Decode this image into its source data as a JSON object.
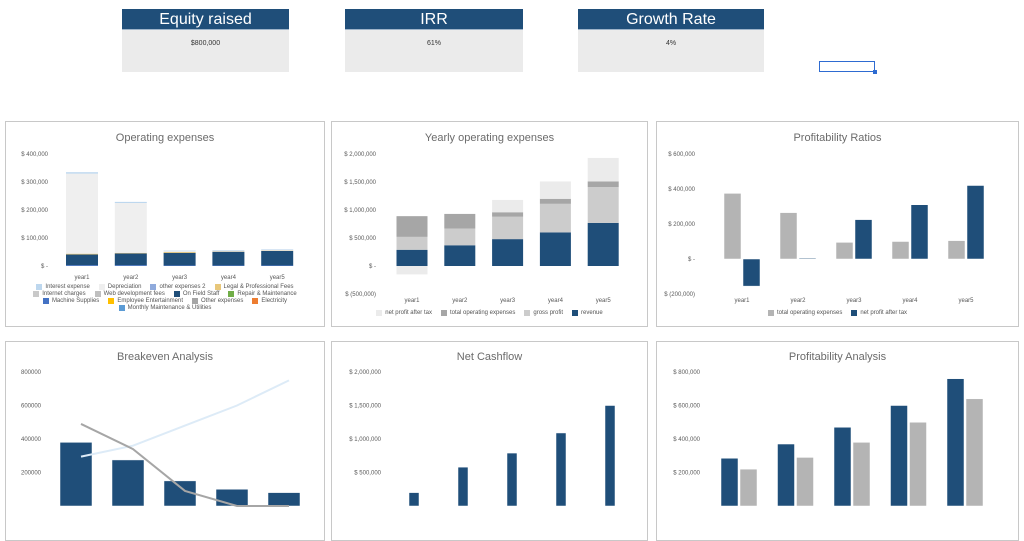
{
  "kpis": [
    {
      "title": "Equity raised",
      "value": "$800,000"
    },
    {
      "title": "IRR",
      "value": "61%"
    },
    {
      "title": "Growth Rate",
      "value": "4%"
    }
  ],
  "colors": {
    "navy": "#1f4e79",
    "kpi_bg": "#ebebeb",
    "grey": "#b4b4b4"
  },
  "chart_data": [
    {
      "id": "opex",
      "type": "bar",
      "stacked": true,
      "title": "Operating expenses",
      "categories": [
        "year1",
        "year2",
        "year3",
        "year4",
        "year5"
      ],
      "ylim": [
        0,
        400000
      ],
      "yticks": [
        {
          "value": 400000,
          "label": "$ 400,000"
        },
        {
          "value": 300000,
          "label": "$ 300,000"
        },
        {
          "value": 200000,
          "label": "$ 200,000"
        },
        {
          "value": 100000,
          "label": "$ 100,000"
        },
        {
          "value": 0,
          "label": "$ -"
        }
      ],
      "legend": "bottom",
      "series": [
        {
          "name": "Interest expense",
          "color": "#bdd7ee",
          "values": [
            5000,
            4000,
            2000,
            2000,
            2000
          ]
        },
        {
          "name": "Depreciation",
          "color": "#efefef",
          "values": [
            286000,
            178000,
            3000,
            3000,
            3000
          ]
        },
        {
          "name": "other expenses 2",
          "color": "#8faadc",
          "values": [
            0,
            0,
            0,
            0,
            0
          ]
        },
        {
          "name": "Legal & Professional Fees",
          "color": "#e8c77a",
          "values": [
            3000,
            2000,
            3000,
            1000,
            1000
          ]
        },
        {
          "name": "Internet charges",
          "color": "#c9c9c9",
          "values": [
            0,
            0,
            0,
            0,
            0
          ]
        },
        {
          "name": "Web development fees",
          "color": "#bfbfbf",
          "values": [
            0,
            0,
            0,
            0,
            0
          ]
        },
        {
          "name": "On Field Staff",
          "color": "#1f4e79",
          "values": [
            38000,
            42000,
            45000,
            49000,
            52000
          ]
        },
        {
          "name": "Repair & Maintenance",
          "color": "#70ad47",
          "values": [
            0,
            0,
            0,
            0,
            0
          ]
        },
        {
          "name": "Machine Supplies",
          "color": "#4472c4",
          "values": [
            3000,
            3000,
            2000,
            2000,
            2000
          ]
        },
        {
          "name": "Employee Entertainment",
          "color": "#ffc000",
          "values": [
            0,
            0,
            0,
            0,
            0
          ]
        },
        {
          "name": "Other expenses",
          "color": "#a5a5a5",
          "values": [
            0,
            0,
            0,
            0,
            0
          ]
        },
        {
          "name": "Electricity",
          "color": "#ed7d31",
          "values": [
            0,
            0,
            0,
            0,
            0
          ]
        },
        {
          "name": "Monthly Maintenance & Utilities",
          "color": "#5b9bd5",
          "values": [
            0,
            0,
            0,
            0,
            0
          ]
        }
      ]
    },
    {
      "id": "yearly",
      "type": "bar",
      "stacked": true,
      "title": "Yearly operating expenses",
      "categories": [
        "year1",
        "year2",
        "year3",
        "year4",
        "year5"
      ],
      "ylim": [
        -500000,
        2000000
      ],
      "yticks": [
        {
          "value": 2000000,
          "label": "$ 2,000,000"
        },
        {
          "value": 1500000,
          "label": "$ 1,500,000"
        },
        {
          "value": 1000000,
          "label": "$ 1,000,000"
        },
        {
          "value": 500000,
          "label": "$ 500,000"
        },
        {
          "value": 0,
          "label": "$ -"
        },
        {
          "value": -500000,
          "label": "$ (500,000)"
        }
      ],
      "legend": "bottom",
      "series": [
        {
          "name": "net profit after tax",
          "color": "#ebebeb",
          "values": [
            -150000,
            0,
            220000,
            310000,
            420000
          ]
        },
        {
          "name": "total operating expenses",
          "color": "#a6a6a6",
          "values": [
            370000,
            260000,
            80000,
            90000,
            100000
          ]
        },
        {
          "name": "gross profit",
          "color": "#cccccc",
          "values": [
            230000,
            300000,
            400000,
            510000,
            640000
          ]
        },
        {
          "name": "revenue",
          "color": "#1f4e79",
          "values": [
            290000,
            370000,
            480000,
            600000,
            770000
          ]
        }
      ]
    },
    {
      "id": "ratios",
      "type": "bar",
      "stacked": false,
      "title": "Profitability Ratios",
      "categories": [
        "year1",
        "year2",
        "year3",
        "year4",
        "year5"
      ],
      "ylim": [
        -200000,
        600000
      ],
      "yticks": [
        {
          "value": 600000,
          "label": "$ 600,000"
        },
        {
          "value": 400000,
          "label": "$ 400,000"
        },
        {
          "value": 200000,
          "label": "$ 200,000"
        },
        {
          "value": 0,
          "label": "$ -"
        },
        {
          "value": -200000,
          "label": "$ (200,000)"
        }
      ],
      "legend": "bottom",
      "series": [
        {
          "name": "total operating expenses",
          "color": "#b4b4b4",
          "values": [
            375000,
            265000,
            95000,
            100000,
            105000
          ]
        },
        {
          "name": "net profit after tax",
          "color": "#1f4e79",
          "values": [
            -155000,
            5000,
            225000,
            310000,
            420000
          ]
        }
      ]
    },
    {
      "id": "breakeven",
      "type": "bar+line",
      "stacked": false,
      "title": "Breakeven Analysis",
      "categories": [
        "year1",
        "year2",
        "year3",
        "year4",
        "year5"
      ],
      "ylim": [
        0,
        800000
      ],
      "yticks": [
        {
          "value": 800000,
          "label": "800000"
        },
        {
          "value": 600000,
          "label": "600000"
        },
        {
          "value": 400000,
          "label": "400000"
        },
        {
          "value": 200000,
          "label": "200000"
        }
      ],
      "series": [
        {
          "kind": "bar",
          "color": "#1f4e79",
          "values": [
            380000,
            275000,
            150000,
            100000,
            80000
          ]
        },
        {
          "kind": "line",
          "color": "#ddebf7",
          "values": [
            295000,
            360000,
            480000,
            600000,
            750000
          ]
        },
        {
          "kind": "line",
          "color": "#a6a6a6",
          "values": [
            490000,
            340000,
            90000,
            0,
            0
          ]
        }
      ]
    },
    {
      "id": "cashflow",
      "type": "bar",
      "stacked": false,
      "title": "Net Cashflow",
      "categories": [
        "year1",
        "year2",
        "year3",
        "year4",
        "year5"
      ],
      "ylim": [
        0,
        2000000
      ],
      "yticks": [
        {
          "value": 2000000,
          "label": "$ 2,000,000"
        },
        {
          "value": 1500000,
          "label": "$ 1,500,000"
        },
        {
          "value": 1000000,
          "label": "$ 1,000,000"
        },
        {
          "value": 500000,
          "label": "$ 500,000"
        }
      ],
      "series": [
        {
          "color": "#1f4e79",
          "values": [
            200000,
            580000,
            790000,
            1090000,
            1500000
          ]
        }
      ]
    },
    {
      "id": "analysis",
      "type": "bar",
      "stacked": false,
      "title": "Profitability Analysis",
      "categories": [
        "year1",
        "year2",
        "year3",
        "year4",
        "year5"
      ],
      "ylim": [
        0,
        800000
      ],
      "yticks": [
        {
          "value": 800000,
          "label": "$ 800,000"
        },
        {
          "value": 600000,
          "label": "$ 600,000"
        },
        {
          "value": 400000,
          "label": "$ 400,000"
        },
        {
          "value": 200000,
          "label": "$ 200,000"
        }
      ],
      "series": [
        {
          "color": "#1f4e79",
          "values": [
            285000,
            370000,
            470000,
            600000,
            760000
          ]
        },
        {
          "color": "#b4b4b4",
          "values": [
            220000,
            290000,
            380000,
            500000,
            640000
          ]
        }
      ]
    }
  ]
}
